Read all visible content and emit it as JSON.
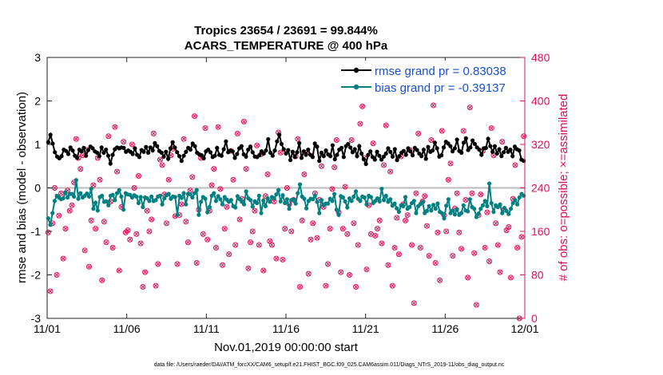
{
  "chart_data": {
    "type": "line",
    "title": "Tropics 23654 / 23691 = 99.844%",
    "subtitle": "ACARS_TEMPERATURE @ 400 hPa",
    "xlabel": "Nov.01,2019 00:00:00 start",
    "ylabel_left": "rmse and bias (model - observation)",
    "ylabel_right": "# of obs: o=possible; ×=assimilated",
    "footer": "data file: /Users/raeder/DAI/ATM_forcXX/CAM6_setup/f.e21.FHIST_BGC.f09_025.CAM6assim.011/Diags_NTrS_2019-11/obs_diag_output.nc",
    "xlim": [
      0,
      30
    ],
    "ylim_left": [
      -3,
      3
    ],
    "ylim_right": [
      0,
      480
    ],
    "x_ticks": [
      0,
      5,
      10,
      15,
      20,
      25,
      30
    ],
    "x_tick_labels": [
      "11/01",
      "11/06",
      "11/11",
      "11/16",
      "11/21",
      "11/26",
      "12/01"
    ],
    "y_ticks_left": [
      "-3",
      "-2",
      "-1",
      "0",
      "1",
      "2",
      "3"
    ],
    "y_ticks_right": [
      "0",
      "80",
      "160",
      "240",
      "320",
      "400",
      "480"
    ],
    "colors": {
      "rmse": "#000000",
      "bias": "#008080",
      "obs": "#e0105a",
      "zero_line": "#bbbbbb"
    },
    "legend": [
      {
        "name": "rmse grand pr = 0.83038",
        "color": "#1a4fd0"
      },
      {
        "name": "bias grand pr = -0.39137",
        "color": "#1a4fd0"
      }
    ],
    "series": [
      {
        "name": "rmse",
        "values": [
          1.05,
          1.22,
          1.02,
          0.82,
          0.72,
          0.68,
          0.73,
          0.88,
          0.85,
          0.78,
          0.93,
          0.86,
          0.74,
          0.69,
          0.88,
          0.84,
          0.92,
          0.74,
          0.87,
          0.95,
          0.91,
          0.84,
          0.81,
          0.73,
          0.93,
          0.81,
          0.88,
          0.74,
          0.56,
          0.76,
          0.89,
          0.93,
          0.91,
          0.93,
          0.92,
          0.83,
          0.86,
          0.83,
          0.78,
          0.91,
          0.76,
          0.71,
          0.87,
          0.83,
          0.94,
          0.81,
          0.93,
          0.86,
          1.03,
          0.96,
          0.85,
          0.81,
          0.72,
          0.83,
          0.67,
          0.91,
          1.05,
          0.93,
          0.82,
          0.73,
          0.62,
          0.74,
          0.83,
          0.92,
          0.88,
          1.02,
          0.96,
          0.81,
          0.77,
          0.75,
          0.68,
          0.84,
          0.88,
          0.82,
          0.71,
          0.74,
          0.92,
          0.76,
          0.74,
          0.89,
          1.07,
          0.82,
          0.86,
          0.84,
          0.69,
          0.78,
          0.91,
          0.96,
          0.77,
          0.72,
          0.88,
          0.95,
          0.82,
          0.72,
          0.71,
          0.75,
          0.84,
          0.79,
          0.86,
          1.12,
          0.81,
          0.74,
          0.86,
          1.07,
          1.22,
          1.01,
          0.89,
          0.79,
          0.87,
          0.64,
          0.83,
          0.71,
          0.82,
          1.03,
          0.69,
          0.84,
          0.76,
          0.88,
          0.76,
          0.71,
          1.02,
          0.95,
          0.62,
          0.81,
          0.73,
          0.86,
          0.77,
          0.73,
          0.98,
          0.66,
          0.76,
          0.88,
          0.92,
          0.71,
          0.96,
          1.01,
          0.93,
          0.82,
          0.89,
          0.73,
          0.96,
          0.79,
          0.66,
          0.55,
          0.76,
          0.84,
          0.71,
          0.65,
          0.83,
          0.74,
          0.65,
          0.72,
          0.79,
          0.91,
          0.83,
          0.72,
          0.89,
          0.64,
          0.73,
          0.81,
          0.85,
          0.76,
          0.91,
          0.84,
          0.75,
          0.92,
          0.87,
          0.79,
          0.73,
          0.88,
          0.67,
          0.94,
          0.83,
          0.86,
          1.04,
          0.91,
          0.72,
          0.75,
          0.93,
          1.06,
          1.02,
          0.96,
          0.84,
          0.91,
          1.11,
          0.85,
          0.81,
          1.04,
          1.14,
          0.87,
          0.93,
          1.09,
          1.01,
          0.93,
          0.88,
          0.76,
          0.91,
          0.92,
          1.13,
          0.96,
          0.83,
          0.96,
          0.79,
          0.89,
          0.73,
          0.82,
          0.92,
          0.83,
          0.88,
          0.73,
          0.95,
          0.89,
          0.86,
          0.65,
          0.62
        ]
      },
      {
        "name": "bias",
        "values": [
          -0.7,
          -0.85,
          -0.58,
          -0.3,
          -0.18,
          -0.22,
          -0.26,
          -0.24,
          -0.1,
          -0.22,
          -0.14,
          -0.14,
          -0.2,
          0.18,
          -0.25,
          -0.12,
          -0.22,
          -0.18,
          -0.13,
          -0.2,
          -0.02,
          -0.48,
          -0.34,
          -0.52,
          -0.21,
          -0.18,
          -0.32,
          -0.31,
          -0.4,
          -0.18,
          -0.16,
          -0.28,
          -0.12,
          -0.05,
          -0.2,
          -0.5,
          -0.12,
          -0.15,
          -0.16,
          -0.22,
          -0.17,
          -0.2,
          -0.35,
          -0.21,
          -0.44,
          -0.22,
          -0.24,
          -0.3,
          -0.2,
          -0.3,
          -0.28,
          -0.2,
          -0.18,
          -0.38,
          -0.24,
          -0.17,
          -0.14,
          -0.25,
          -0.2,
          -0.21,
          -0.62,
          -0.18,
          -0.23,
          -0.12,
          -0.38,
          -0.14,
          -0.15,
          -0.22,
          -0.12,
          -0.05,
          -0.62,
          -0.32,
          -0.21,
          -0.25,
          -0.56,
          -0.44,
          -0.18,
          -0.12,
          -0.3,
          -0.19,
          -0.26,
          -0.38,
          -0.21,
          -0.27,
          -0.32,
          -0.28,
          -0.42,
          -0.45,
          -0.19,
          -0.26,
          -0.32,
          -0.38,
          -0.08,
          -0.24,
          -0.28,
          -0.43,
          -0.31,
          -0.35,
          -0.18,
          -0.58,
          -0.29,
          -0.42,
          -0.24,
          -0.32,
          -0.21,
          -0.24,
          -0.15,
          -0.05,
          -0.31,
          -0.17,
          -0.35,
          -0.26,
          -0.48,
          -0.28,
          -0.27,
          -0.36,
          -0.12,
          0.08,
          -0.2,
          -0.25,
          -0.47,
          -0.3,
          -0.25,
          -0.26,
          -0.18,
          -0.32,
          -0.58,
          -0.28,
          -0.4,
          -0.36,
          -0.36,
          -0.25,
          -0.3,
          -0.14,
          -0.5,
          -0.62,
          -0.19,
          -0.22,
          -0.31,
          -0.45,
          -0.24,
          -0.3,
          -0.2,
          -0.08,
          -0.25,
          -0.3,
          -0.2,
          -0.22,
          -0.38,
          -0.18,
          -0.21,
          -0.35,
          -0.3,
          -0.24,
          -0.31,
          -0.02,
          -0.28,
          -0.18,
          -0.32,
          -0.26,
          -0.41,
          -0.36,
          -0.47,
          -0.55,
          -0.4,
          -0.42,
          -0.21,
          -0.48,
          -0.44,
          -0.35,
          -0.3,
          -0.58,
          -0.42,
          -0.37,
          -0.32,
          -0.58,
          -0.53,
          -0.42,
          -0.52,
          -0.39,
          -0.48,
          -0.36,
          -0.55,
          -0.58,
          -0.7,
          -0.41,
          -0.26,
          -0.58,
          -0.52,
          -0.61,
          -0.49,
          -0.62,
          -0.58,
          -0.4,
          -0.52,
          -0.54,
          -0.26,
          -0.44,
          -0.48,
          -0.67,
          -0.59,
          -0.48,
          -0.4,
          -0.3,
          -0.42,
          0.1,
          -0.35,
          -0.55,
          -0.4,
          -0.44,
          -0.38,
          -0.58,
          -0.46,
          -0.53,
          -0.6,
          -0.48,
          -0.35,
          -0.28,
          -0.38,
          -0.22,
          -0.14,
          -0.18
        ]
      }
    ],
    "obs_counts": [
      158,
      50,
      175,
      240,
      80,
      189,
      230,
      110,
      165,
      235,
      198,
      208,
      250,
      330,
      295,
      275,
      300,
      125,
      310,
      95,
      180,
      245,
      165,
      295,
      255,
      70,
      178,
      140,
      335,
      215,
      130,
      352,
      270,
      88,
      205,
      325,
      158,
      162,
      145,
      320,
      240,
      155,
      262,
      138,
      58,
      85,
      198,
      160,
      182,
      340,
      60,
      100,
      292,
      282,
      228,
      175,
      255,
      300,
      312,
      188,
      100,
      190,
      210,
      330,
      178,
      140,
      235,
      260,
      372,
      102,
      200,
      295,
      155,
      350,
      145,
      198,
      245,
      275,
      130,
      352,
      238,
      98,
      165,
      205,
      118,
      308,
      255,
      135,
      340,
      182,
      220,
      362,
      275,
      92,
      140,
      160,
      198,
      318,
      135,
      302,
      88,
      225,
      265,
      142,
      135,
      215,
      110,
      342,
      305,
      108,
      165,
      240,
      210,
      160,
      218,
      298,
      330,
      58,
      180,
      265,
      305,
      82,
      145,
      175,
      230,
      148,
      218,
      280,
      205,
      60,
      100,
      165,
      238,
      278,
      328,
      195,
      85,
      165,
      242,
      155,
      80,
      328,
      175,
      58,
      135,
      358,
      390,
      295,
      90,
      208,
      155,
      322,
      152,
      165,
      180,
      138,
      282,
      355,
      98,
      270,
      60,
      130,
      185,
      118,
      298,
      210,
      180,
      190,
      310,
      135,
      28,
      230,
      340,
      130,
      215,
      225,
      170,
      115,
      328,
      392,
      102,
      158,
      70,
      345,
      190,
      160,
      255,
      285,
      115,
      202,
      230,
      158,
      128,
      345,
      218,
      75,
      388,
      230,
      120,
      25,
      190,
      228,
      308,
      130,
      195,
      105,
      350,
      300,
      175,
      135,
      85,
      325,
      200,
      162,
      168,
      75,
      220,
      282,
      130,
      0,
      150,
      335
    ]
  }
}
